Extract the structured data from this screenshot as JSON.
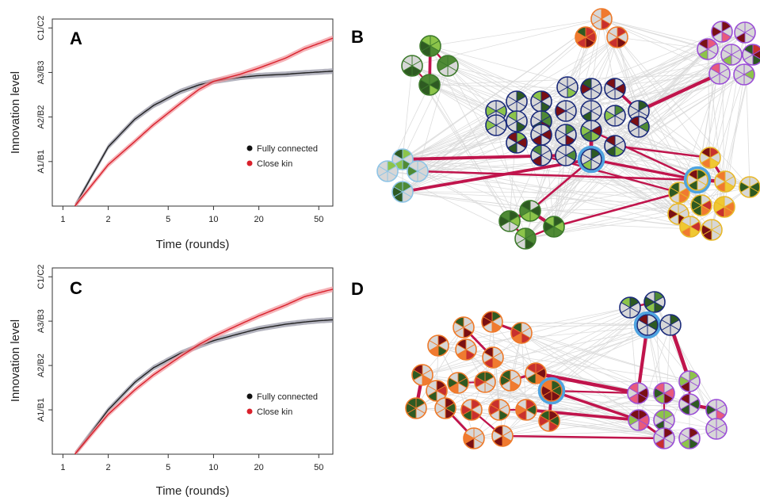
{
  "chart_data": [
    {
      "type": "line",
      "panel": "A",
      "title": "A",
      "xlabel": "Time (rounds)",
      "ylabel": "Innovation level",
      "x_scale": "log",
      "xlim": [
        0.85,
        62
      ],
      "ylim": [
        0,
        4.2
      ],
      "x_ticks": [
        1,
        2,
        5,
        10,
        20,
        50
      ],
      "x_tick_labels": [
        "1",
        "2",
        "5",
        "10",
        "20",
        "50"
      ],
      "y_ticks": [
        1,
        2,
        3,
        4
      ],
      "y_tick_labels": [
        "A1/B1",
        "A2/B2",
        "A3/B3",
        "C1/C2"
      ],
      "legend_position": "right",
      "series": [
        {
          "name": "Fully connected",
          "color": "#222222",
          "band_color": "#9a9aa8",
          "x": [
            1.2,
            2,
            3,
            4,
            6,
            8,
            10,
            15,
            20,
            30,
            40,
            50,
            62
          ],
          "y": [
            0,
            1.33,
            1.95,
            2.26,
            2.57,
            2.72,
            2.8,
            2.89,
            2.93,
            2.96,
            2.99,
            3.01,
            3.03
          ]
        },
        {
          "name": "Close kin",
          "color": "#d9202b",
          "band_color": "#f29aa0",
          "x": [
            1.2,
            2,
            3,
            4,
            6,
            8,
            10,
            15,
            20,
            30,
            40,
            50,
            62
          ],
          "y": [
            0,
            0.93,
            1.45,
            1.83,
            2.3,
            2.62,
            2.8,
            2.96,
            3.1,
            3.32,
            3.53,
            3.65,
            3.77
          ]
        }
      ]
    },
    {
      "type": "line",
      "panel": "C",
      "title": "C",
      "xlabel": "Time (rounds)",
      "ylabel": "Innovation level",
      "x_scale": "log",
      "xlim": [
        0.85,
        62
      ],
      "ylim": [
        0,
        4.2
      ],
      "x_ticks": [
        1,
        2,
        5,
        10,
        20,
        50
      ],
      "x_tick_labels": [
        "1",
        "2",
        "5",
        "10",
        "20",
        "50"
      ],
      "y_ticks": [
        1,
        2,
        3,
        4
      ],
      "y_tick_labels": [
        "A1/B1",
        "A2/B2",
        "A3/B3",
        "C1/C2"
      ],
      "legend_position": "right",
      "series": [
        {
          "name": "Fully connected",
          "color": "#222222",
          "band_color": "#9a9aa8",
          "x": [
            1.2,
            2,
            3,
            4,
            6,
            8,
            10,
            15,
            20,
            30,
            40,
            50,
            62
          ],
          "y": [
            0,
            1.0,
            1.62,
            1.95,
            2.27,
            2.44,
            2.56,
            2.72,
            2.83,
            2.93,
            2.98,
            3.01,
            3.03
          ]
        },
        {
          "name": "Close kin",
          "color": "#d9202b",
          "band_color": "#f29aa0",
          "x": [
            1.2,
            2,
            3,
            4,
            6,
            8,
            10,
            15,
            20,
            30,
            40,
            50,
            62
          ],
          "y": [
            0,
            0.9,
            1.45,
            1.79,
            2.2,
            2.47,
            2.65,
            2.93,
            3.12,
            3.36,
            3.55,
            3.64,
            3.72
          ]
        }
      ]
    }
  ],
  "networks": [
    {
      "panel": "B",
      "title": "B"
    },
    {
      "panel": "D",
      "title": "D"
    }
  ],
  "colors": {
    "edge_grey": "#d9d9d9",
    "edge_kin": "#c0144c",
    "highlight": "#4ea3e0",
    "navy": "#1a2a7a",
    "lightblue": "#8ec4e6",
    "green": "#3d7a2c",
    "orange": "#ee7a2a",
    "purple": "#9b4fd6",
    "yellow": "#e8b82a"
  }
}
